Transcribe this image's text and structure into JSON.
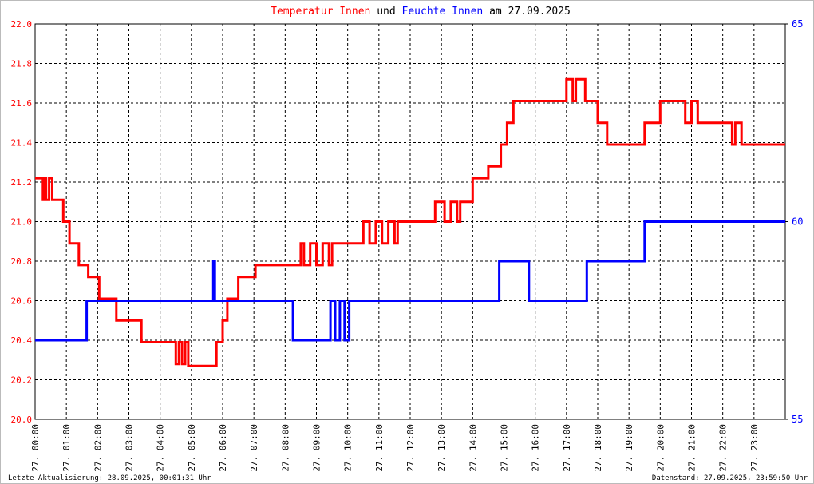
{
  "chart_data": {
    "type": "line",
    "title_joiner": "und",
    "title_suffix": "am 27.09.2025",
    "footer_left": "Letzte Aktualisierung: 28.09.2025, 00:01:31 Uhr",
    "footer_right": "Datenstand: 27.09.2025, 23:59:50 Uhr",
    "xlim": [
      0,
      24
    ],
    "xticks": [
      {
        "value": 0,
        "label": "27. 00:00"
      },
      {
        "value": 1,
        "label": "27. 01:00"
      },
      {
        "value": 2,
        "label": "27. 02:00"
      },
      {
        "value": 3,
        "label": "27. 03:00"
      },
      {
        "value": 4,
        "label": "27. 04:00"
      },
      {
        "value": 5,
        "label": "27. 05:00"
      },
      {
        "value": 6,
        "label": "27. 06:00"
      },
      {
        "value": 7,
        "label": "27. 07:00"
      },
      {
        "value": 8,
        "label": "27. 08:00"
      },
      {
        "value": 9,
        "label": "27. 09:00"
      },
      {
        "value": 10,
        "label": "27. 10:00"
      },
      {
        "value": 11,
        "label": "27. 11:00"
      },
      {
        "value": 12,
        "label": "27. 12:00"
      },
      {
        "value": 13,
        "label": "27. 13:00"
      },
      {
        "value": 14,
        "label": "27. 14:00"
      },
      {
        "value": 15,
        "label": "27. 15:00"
      },
      {
        "value": 16,
        "label": "27. 16:00"
      },
      {
        "value": 17,
        "label": "27. 17:00"
      },
      {
        "value": 18,
        "label": "27. 18:00"
      },
      {
        "value": 19,
        "label": "27. 19:00"
      },
      {
        "value": 20,
        "label": "27. 20:00"
      },
      {
        "value": 21,
        "label": "27. 21:00"
      },
      {
        "value": 22,
        "label": "27. 22:00"
      },
      {
        "value": 23,
        "label": "27. 23:00"
      }
    ],
    "ylim": [
      20,
      22
    ],
    "yticks": [
      {
        "value": 20,
        "label": "20.0"
      },
      20.2,
      20.4,
      20.6,
      20.8,
      {
        "value": 21,
        "label": "21.0"
      },
      21.2,
      21.4,
      21.6,
      21.8,
      {
        "value": 22,
        "label": "22.0"
      }
    ],
    "y2lim": [
      55,
      65
    ],
    "y2ticks": [
      55,
      60,
      65
    ],
    "grid": true,
    "series": [
      {
        "name": "Temperatur Innen",
        "color": "#ff0000",
        "x": [
          0,
          0.25,
          0.25,
          0.3,
          0.3,
          0.35,
          0.35,
          0.45,
          0.45,
          0.55,
          0.55,
          0.9,
          0.9,
          1.1,
          1.1,
          1.4,
          1.4,
          1.7,
          1.7,
          2.05,
          2.05,
          2.6,
          2.6,
          3.4,
          3.4,
          4.5,
          4.5,
          4.6,
          4.6,
          4.7,
          4.7,
          4.8,
          4.8,
          4.9,
          4.9,
          5.8,
          5.8,
          6.0,
          6.0,
          6.15,
          6.15,
          6.5,
          6.5,
          7.05,
          7.05,
          8.5,
          8.5,
          8.6,
          8.6,
          8.8,
          8.8,
          9.0,
          9.0,
          9.2,
          9.2,
          9.4,
          9.4,
          9.5,
          9.5,
          10.5,
          10.5,
          10.7,
          10.7,
          10.9,
          10.9,
          11.1,
          11.1,
          11.3,
          11.3,
          11.5,
          11.5,
          11.6,
          11.6,
          12.8,
          12.8,
          13.1,
          13.1,
          13.3,
          13.3,
          13.5,
          13.5,
          13.6,
          13.6,
          14.0,
          14.0,
          14.5,
          14.5,
          14.9,
          14.9,
          15.1,
          15.1,
          15.3,
          15.3,
          17.0,
          17.0,
          17.2,
          17.2,
          17.3,
          17.3,
          17.6,
          17.6,
          18.0,
          18.0,
          18.3,
          18.3,
          19.5,
          19.5,
          20.0,
          20.0,
          20.8,
          20.8,
          21.0,
          21.0,
          21.2,
          21.2,
          22.3,
          22.3,
          22.4,
          22.4,
          22.6,
          22.6,
          24
        ],
        "values": [
          21.22,
          21.22,
          21.11,
          21.11,
          21.22,
          21.22,
          21.11,
          21.11,
          21.22,
          21.22,
          21.11,
          21.11,
          21.0,
          21.0,
          20.89,
          20.89,
          20.78,
          20.78,
          20.72,
          20.72,
          20.61,
          20.61,
          20.5,
          20.5,
          20.39,
          20.39,
          20.28,
          20.28,
          20.39,
          20.39,
          20.28,
          20.28,
          20.39,
          20.39,
          20.27,
          20.27,
          20.39,
          20.39,
          20.5,
          20.5,
          20.61,
          20.61,
          20.72,
          20.72,
          20.78,
          20.78,
          20.89,
          20.89,
          20.78,
          20.78,
          20.89,
          20.89,
          20.78,
          20.78,
          20.89,
          20.89,
          20.78,
          20.78,
          20.89,
          20.89,
          21.0,
          21.0,
          20.89,
          20.89,
          21.0,
          21.0,
          20.89,
          20.89,
          21.0,
          21.0,
          20.89,
          20.89,
          21.0,
          21.0,
          21.1,
          21.1,
          21.0,
          21.0,
          21.1,
          21.1,
          21.0,
          21.0,
          21.1,
          21.1,
          21.22,
          21.22,
          21.28,
          21.28,
          21.39,
          21.39,
          21.5,
          21.5,
          21.61,
          21.61,
          21.72,
          21.72,
          21.61,
          21.61,
          21.72,
          21.72,
          21.61,
          21.61,
          21.5,
          21.5,
          21.39,
          21.39,
          21.5,
          21.5,
          21.61,
          21.61,
          21.5,
          21.5,
          21.61,
          21.61,
          21.5,
          21.5,
          21.39,
          21.39,
          21.5,
          21.5,
          21.39,
          21.39
        ]
      },
      {
        "name": "Feuchte Innen",
        "color": "#0000ff",
        "axis": "y2",
        "x": [
          0,
          1.65,
          1.65,
          5.7,
          5.7,
          5.75,
          5.75,
          8.25,
          8.25,
          9.45,
          9.45,
          9.6,
          9.6,
          9.75,
          9.75,
          9.9,
          9.9,
          10.05,
          10.05,
          14.85,
          14.85,
          15.8,
          15.8,
          17.65,
          17.65,
          19.5,
          19.5,
          24
        ],
        "values": [
          57,
          57,
          58,
          58,
          59,
          59,
          58,
          58,
          57,
          57,
          58,
          58,
          57,
          57,
          58,
          58,
          57,
          57,
          58,
          58,
          59,
          59,
          58,
          58,
          59,
          59,
          60,
          60
        ]
      }
    ]
  }
}
